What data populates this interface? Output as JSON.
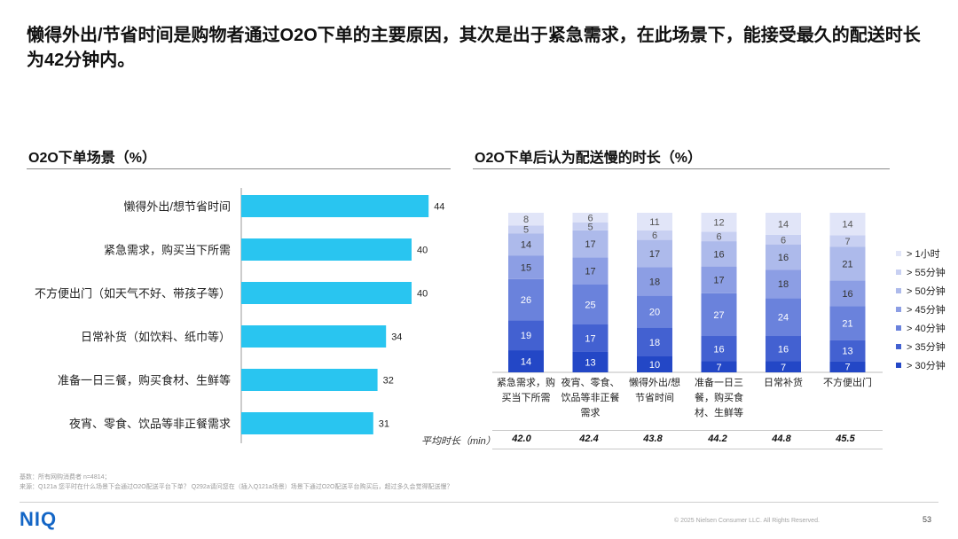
{
  "headline": "懒得外出/节省时间是购物者通过O2O下单的主要原因，其次是出于紧急需求，在此场景下，能接受最久的配送时长为42分钟内。",
  "colors": {
    "bar": "#29c5f0",
    "stack": [
      "#2347c6",
      "#4361d1",
      "#6a82dc",
      "#8c9ee4",
      "#adbaeb",
      "#c8d0f2",
      "#e1e5f8"
    ]
  },
  "chart_data": [
    {
      "type": "bar",
      "orientation": "horizontal",
      "title": "O2O下单场景（%）",
      "categories": [
        "懒得外出/想节省时间",
        "紧急需求，购买当下所需",
        "不方便出门（如天气不好、带孩子等）",
        "日常补货（如饮料、纸巾等）",
        "准备一日三餐，购买食材、生鲜等",
        "夜宵、零食、饮品等非正餐需求"
      ],
      "values": [
        44,
        40,
        40,
        34,
        32,
        31
      ],
      "xlim": [
        0,
        50
      ],
      "grid": false
    },
    {
      "type": "bar",
      "stacked": true,
      "title": "O2O下单后认为配送慢的时长（%）",
      "categories": [
        [
          "紧急需求，购",
          "买当下所需"
        ],
        [
          "夜宵、零食、",
          "饮品等非正餐",
          "需求"
        ],
        [
          "懒得外出/想",
          "节省时间"
        ],
        [
          "准备一日三",
          "餐，购买食",
          "材、生鲜等"
        ],
        [
          "日常补货"
        ],
        [
          "不方便出门"
        ]
      ],
      "legend_position": "right",
      "ylim": [
        0,
        100
      ],
      "series": [
        {
          "name": "> 30分钟",
          "values": [
            14,
            13,
            10,
            7,
            7,
            7
          ]
        },
        {
          "name": "> 35分钟",
          "values": [
            19,
            17,
            18,
            16,
            16,
            13
          ]
        },
        {
          "name": "> 40分钟",
          "values": [
            26,
            25,
            20,
            27,
            24,
            21
          ]
        },
        {
          "name": "> 45分钟",
          "values": [
            15,
            17,
            18,
            17,
            18,
            16
          ]
        },
        {
          "name": "> 50分钟",
          "values": [
            14,
            17,
            17,
            16,
            16,
            21
          ]
        },
        {
          "name": "> 55分钟",
          "values": [
            5,
            5,
            6,
            6,
            6,
            7
          ]
        },
        {
          "name": "> 1小时",
          "values": [
            8,
            6,
            11,
            12,
            14,
            14
          ]
        }
      ],
      "average_label": "平均时长（min）",
      "average_values": [
        "42.0",
        "42.4",
        "43.8",
        "44.2",
        "44.8",
        "45.5"
      ]
    }
  ],
  "notes": {
    "base": "基数：所有网购消费者 n=4814；",
    "source": "来源：Q121a 您平时在什么场景下会通过O2O配送平台下单？ Q292a请问您在（插入Q121a场景）场景下通过O2O配送平台购买后，超过多久会觉得配送慢？"
  },
  "footer": {
    "logo": "NIQ",
    "copyright": "© 2025 Nielsen Consumer LLC. All Rights Reserved.",
    "page": "53"
  }
}
